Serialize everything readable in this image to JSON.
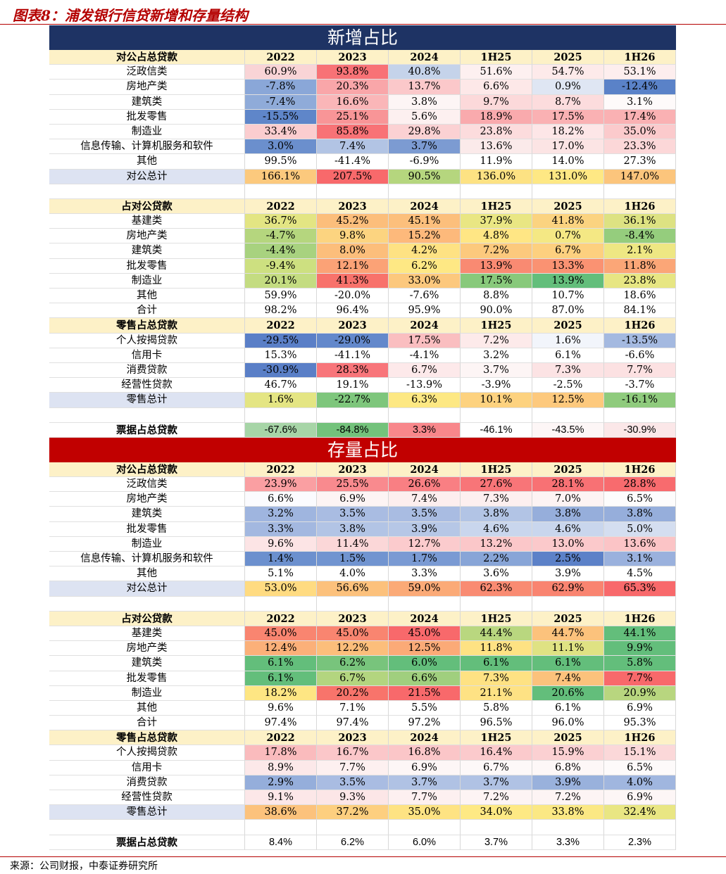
{
  "figure_title": "图表8：浦发银行信贷新增和存量结构",
  "source": "来源：公司财报，中泰证券研究所",
  "years": [
    "2022",
    "2023",
    "2024",
    "1H25",
    "2025",
    "1H26"
  ],
  "sections": [
    {
      "banner": "新增占比",
      "color": "navy",
      "rows": [
        {
          "type": "header",
          "label": "对公占总贷款"
        },
        {
          "type": "data",
          "label": "泛政信类",
          "values": [
            "60.9%",
            "93.8%",
            "40.8%",
            "51.6%",
            "54.7%",
            "53.1%"
          ],
          "colors": [
            "#f9d4d6",
            "#f87276",
            "#c5d3ea",
            "#fdf0f0",
            "#fdeaea",
            "#fdeeee"
          ]
        },
        {
          "type": "data",
          "label": "房地产类",
          "values": [
            "-7.8%",
            "20.3%",
            "13.7%",
            "6.6%",
            "0.9%",
            "-12.4%"
          ],
          "colors": [
            "#8aa7d8",
            "#f9a6a9",
            "#fbc8ca",
            "#fde8e8",
            "#dfe6f3",
            "#5a82c8"
          ]
        },
        {
          "type": "data",
          "label": "建筑类",
          "values": [
            "-7.4%",
            "16.6%",
            "3.8%",
            "9.7%",
            "8.7%",
            "3.1%"
          ],
          "colors": [
            "#8fabd9",
            "#fab6b8",
            "#fdf5f5",
            "#fcd9da",
            "#fcdcdd",
            "#fefafa"
          ]
        },
        {
          "type": "data",
          "label": "批发零售",
          "values": [
            "-15.5%",
            "25.1%",
            "5.6%",
            "18.9%",
            "17.5%",
            "17.4%"
          ],
          "colors": [
            "#5f86c9",
            "#f89597",
            "#fdf0f0",
            "#f9aaad",
            "#fab1b3",
            "#fab1b3"
          ]
        },
        {
          "type": "data",
          "label": "制造业",
          "values": [
            "33.4%",
            "85.8%",
            "29.8%",
            "23.8%",
            "18.2%",
            "35.0%"
          ],
          "colors": [
            "#fbcdcf",
            "#f87276",
            "#fbd1d3",
            "#fcdcdd",
            "#fde6e7",
            "#fbcacc"
          ]
        },
        {
          "type": "data",
          "label": "信息传输、计算机服务和软件",
          "values": [
            "3.0%",
            "7.4%",
            "3.7%",
            "13.6%",
            "17.0%",
            "23.3%"
          ],
          "colors": [
            "#6b8fcd",
            "#b2c4e4",
            "#7c9bd2",
            "#fbeaea",
            "#fce4e4",
            "#fcd7d8"
          ]
        },
        {
          "type": "data",
          "label": "其他",
          "values": [
            "99.5%",
            "-41.4%",
            "-6.9%",
            "11.9%",
            "14.0%",
            "27.3%"
          ],
          "colors": [
            "#ffffff",
            "#ffffff",
            "#ffffff",
            "#ffffff",
            "#ffffff",
            "#ffffff"
          ]
        },
        {
          "type": "total",
          "label": "对公总计",
          "values": [
            "166.1%",
            "207.5%",
            "90.5%",
            "136.0%",
            "131.0%",
            "147.0%"
          ],
          "colors": [
            "#fcc97d",
            "#f8696b",
            "#b5d67e",
            "#fde283",
            "#fee884",
            "#fcc57c"
          ]
        },
        {
          "type": "blank"
        },
        {
          "type": "header",
          "label": "占对公贷款"
        },
        {
          "type": "data",
          "label": "基建类",
          "values": [
            "36.7%",
            "45.2%",
            "45.1%",
            "37.9%",
            "41.8%",
            "36.1%"
          ],
          "colors": [
            "#e3e583",
            "#fcbe7b",
            "#fcbf7c",
            "#e9e683",
            "#fbd380",
            "#dde282"
          ]
        },
        {
          "type": "data",
          "label": "房地产类",
          "values": [
            "-4.7%",
            "9.8%",
            "15.2%",
            "4.8%",
            "0.7%",
            "-8.4%"
          ],
          "colors": [
            "#b5d67e",
            "#fcd480",
            "#fdb97b",
            "#ffe684",
            "#f4e884",
            "#95cd7d"
          ]
        },
        {
          "type": "data",
          "label": "建筑类",
          "values": [
            "-4.4%",
            "8.0%",
            "4.2%",
            "7.2%",
            "6.7%",
            "2.1%"
          ],
          "colors": [
            "#a8d27f",
            "#fcbe7b",
            "#fee283",
            "#fcc97d",
            "#fdd07f",
            "#eee783"
          ]
        },
        {
          "type": "data",
          "label": "批发零售",
          "values": [
            "-9.4%",
            "12.1%",
            "6.2%",
            "13.9%",
            "13.3%",
            "11.8%"
          ],
          "colors": [
            "#cde080",
            "#fba276",
            "#fee884",
            "#f98a72",
            "#fa9272",
            "#fba677"
          ]
        },
        {
          "type": "data",
          "label": "制造业",
          "values": [
            "20.1%",
            "41.3%",
            "33.0%",
            "17.5%",
            "13.9%",
            "23.8%"
          ],
          "colors": [
            "#c4dc81",
            "#f8726b",
            "#fcc87d",
            "#88c97b",
            "#63be7b",
            "#e7e683"
          ]
        },
        {
          "type": "data",
          "label": "其他",
          "values": [
            "59.9%",
            "-20.0%",
            "-7.6%",
            "8.8%",
            "10.7%",
            "18.6%"
          ],
          "colors": [
            "#ffffff",
            "#ffffff",
            "#ffffff",
            "#ffffff",
            "#ffffff",
            "#ffffff"
          ]
        },
        {
          "type": "data",
          "label": "合计",
          "values": [
            "98.2%",
            "96.4%",
            "95.9%",
            "90.0%",
            "87.0%",
            "84.1%"
          ],
          "colors": [
            "#ffffff",
            "#ffffff",
            "#ffffff",
            "#ffffff",
            "#ffffff",
            "#ffffff"
          ]
        },
        {
          "type": "header",
          "label": "零售占总贷款"
        },
        {
          "type": "data",
          "label": "个人按揭贷款",
          "values": [
            "-29.5%",
            "-29.0%",
            "17.5%",
            "7.2%",
            "1.6%",
            "-13.5%"
          ],
          "colors": [
            "#5a7fc7",
            "#6388cb",
            "#fabec0",
            "#fdeaea",
            "#f2f5fb",
            "#a4b9e0"
          ]
        },
        {
          "type": "data",
          "label": "信用卡",
          "values": [
            "15.3%",
            "-41.1%",
            "-4.1%",
            "3.2%",
            "6.1%",
            "-6.6%"
          ],
          "colors": [
            "#ffffff",
            "#ffffff",
            "#ffffff",
            "#ffffff",
            "#ffffff",
            "#ffffff"
          ]
        },
        {
          "type": "data",
          "label": "消费贷款",
          "values": [
            "-30.9%",
            "28.3%",
            "6.7%",
            "3.7%",
            "7.3%",
            "7.7%"
          ],
          "colors": [
            "#5a7fc7",
            "#f8757a",
            "#fde9ea",
            "#fdf5f5",
            "#fce3e4",
            "#fce1e2"
          ]
        },
        {
          "type": "data",
          "label": "经营性贷款",
          "values": [
            "46.7%",
            "19.1%",
            "-13.9%",
            "-3.9%",
            "-2.5%",
            "-3.7%"
          ],
          "colors": [
            "#ffffff",
            "#ffffff",
            "#ffffff",
            "#ffffff",
            "#ffffff",
            "#ffffff"
          ]
        },
        {
          "type": "total",
          "label": "零售总计",
          "values": [
            "1.6%",
            "-22.7%",
            "6.3%",
            "10.1%",
            "12.5%",
            "-16.1%"
          ],
          "colors": [
            "#e4e583",
            "#7ec67c",
            "#fde883",
            "#fdd27f",
            "#fdc97d",
            "#8fcb7d"
          ]
        },
        {
          "type": "blank"
        },
        {
          "type": "bill",
          "label": "票据占总贷款",
          "values": [
            "-67.6%",
            "-84.8%",
            "3.3%",
            "-46.1%",
            "-43.5%",
            "-30.9%"
          ],
          "colors": [
            "#a7d5a7",
            "#73c27b",
            "#f8878b",
            "#ffffff",
            "#fdf6f6",
            "#fbe7e8"
          ]
        }
      ]
    },
    {
      "banner": "存量占比",
      "color": "red",
      "rows": [
        {
          "type": "header",
          "label": "对公占总贷款"
        },
        {
          "type": "data",
          "label": "泛政信类",
          "values": [
            "23.9%",
            "25.5%",
            "26.6%",
            "27.6%",
            "28.1%",
            "28.8%"
          ],
          "colors": [
            "#fa9fa2",
            "#f98a8e",
            "#f97f83",
            "#f87578",
            "#f87174",
            "#f86b6e"
          ]
        },
        {
          "type": "data",
          "label": "房地产类",
          "values": [
            "6.6%",
            "6.9%",
            "7.4%",
            "7.3%",
            "7.0%",
            "6.5%"
          ],
          "colors": [
            "#fbfbfe",
            "#fdf4f4",
            "#fdeeee",
            "#fdefef",
            "#fdf3f3",
            "#fdfcfc"
          ]
        },
        {
          "type": "data",
          "label": "建筑类",
          "values": [
            "3.2%",
            "3.5%",
            "3.5%",
            "3.8%",
            "3.8%",
            "3.8%"
          ],
          "colors": [
            "#9fb5df",
            "#a9bce2",
            "#a9bce2",
            "#b2c4e5",
            "#96aedb",
            "#96aedb"
          ]
        },
        {
          "type": "data",
          "label": "批发零售",
          "values": [
            "3.3%",
            "3.8%",
            "3.9%",
            "4.6%",
            "4.6%",
            "5.0%"
          ],
          "colors": [
            "#a3b8e0",
            "#b2c4e5",
            "#b6c7e6",
            "#c9d6ed",
            "#c9d6ed",
            "#d4def0"
          ]
        },
        {
          "type": "data",
          "label": "制造业",
          "values": [
            "9.6%",
            "11.4%",
            "12.7%",
            "13.2%",
            "13.0%",
            "13.6%"
          ],
          "colors": [
            "#fce4e5",
            "#fbd7d8",
            "#fbcbcd",
            "#fbc7c9",
            "#fbc9cb",
            "#fbc4c6"
          ]
        },
        {
          "type": "data",
          "label": "信息传输、计算机服务和软件",
          "values": [
            "1.4%",
            "1.5%",
            "1.7%",
            "2.2%",
            "2.5%",
            "3.1%"
          ],
          "colors": [
            "#6c90ce",
            "#7194d0",
            "#7a9ad3",
            "#88a5d7",
            "#5c81c8",
            "#9ab1dd"
          ]
        },
        {
          "type": "data",
          "label": "其他",
          "values": [
            "5.1%",
            "4.0%",
            "3.3%",
            "3.6%",
            "3.9%",
            "4.5%"
          ],
          "colors": [
            "#ffffff",
            "#ffffff",
            "#ffffff",
            "#ffffff",
            "#ffffff",
            "#ffffff"
          ]
        },
        {
          "type": "total",
          "label": "对公总计",
          "values": [
            "53.0%",
            "56.6%",
            "59.0%",
            "62.3%",
            "62.9%",
            "65.3%"
          ],
          "colors": [
            "#ffdb81",
            "#fcc17c",
            "#fbaa77",
            "#f98b72",
            "#f98470",
            "#f8696b"
          ]
        },
        {
          "type": "blank"
        },
        {
          "type": "header",
          "label": "占对公贷款"
        },
        {
          "type": "data",
          "label": "基建类",
          "values": [
            "45.0%",
            "45.0%",
            "45.0%",
            "44.4%",
            "44.7%",
            "44.1%"
          ],
          "colors": [
            "#f98570",
            "#f98570",
            "#f8696b",
            "#b9d77f",
            "#fcc27c",
            "#63be7b"
          ]
        },
        {
          "type": "data",
          "label": "房地产类",
          "values": [
            "12.4%",
            "12.2%",
            "12.5%",
            "11.8%",
            "11.1%",
            "9.9%"
          ],
          "colors": [
            "#fbb079",
            "#fcbe7b",
            "#fbaa77",
            "#fee283",
            "#dfe283",
            "#63be7b"
          ]
        },
        {
          "type": "data",
          "label": "建筑类",
          "values": [
            "6.1%",
            "6.2%",
            "6.0%",
            "6.1%",
            "6.1%",
            "5.8%"
          ],
          "colors": [
            "#63be7b",
            "#78c47c",
            "#63be7b",
            "#63be7b",
            "#63be7b",
            "#63be7b"
          ]
        },
        {
          "type": "data",
          "label": "批发零售",
          "values": [
            "6.1%",
            "6.7%",
            "6.6%",
            "7.3%",
            "7.4%",
            "7.7%"
          ],
          "colors": [
            "#63be7b",
            "#b3d57f",
            "#a0cf7e",
            "#fee283",
            "#fcc27c",
            "#f8696b"
          ]
        },
        {
          "type": "data",
          "label": "制造业",
          "values": [
            "18.2%",
            "20.2%",
            "21.5%",
            "21.1%",
            "20.6%",
            "20.9%"
          ],
          "colors": [
            "#fee683",
            "#f8746b",
            "#f8696b",
            "#fee284",
            "#63be7b",
            "#b8d67f"
          ]
        },
        {
          "type": "data",
          "label": "其他",
          "values": [
            "9.6%",
            "7.1%",
            "5.5%",
            "5.8%",
            "6.1%",
            "6.9%"
          ],
          "colors": [
            "#ffffff",
            "#ffffff",
            "#ffffff",
            "#ffffff",
            "#ffffff",
            "#ffffff"
          ]
        },
        {
          "type": "data",
          "label": "合计",
          "values": [
            "97.4%",
            "97.4%",
            "97.2%",
            "96.5%",
            "96.0%",
            "95.3%"
          ],
          "colors": [
            "#ffffff",
            "#ffffff",
            "#ffffff",
            "#ffffff",
            "#ffffff",
            "#ffffff"
          ]
        },
        {
          "type": "header",
          "label": "零售占总贷款"
        },
        {
          "type": "data",
          "label": "个人按揭贷款",
          "values": [
            "17.8%",
            "16.7%",
            "16.8%",
            "16.4%",
            "15.9%",
            "15.1%"
          ],
          "colors": [
            "#fabbbd",
            "#fbc7c9",
            "#fbc6c8",
            "#fbcacc",
            "#fbd0d2",
            "#fbd8d9"
          ]
        },
        {
          "type": "data",
          "label": "信用卡",
          "values": [
            "8.9%",
            "7.7%",
            "6.9%",
            "6.7%",
            "6.8%",
            "6.5%"
          ],
          "colors": [
            "#fce8e9",
            "#fdf0f0",
            "#fdf6f6",
            "#fdf8f8",
            "#fdf7f7",
            "#fdfafa"
          ]
        },
        {
          "type": "data",
          "label": "消费贷款",
          "values": [
            "2.9%",
            "3.5%",
            "3.7%",
            "3.7%",
            "3.9%",
            "4.0%"
          ],
          "colors": [
            "#95aedb",
            "#a9bce2",
            "#b0c2e4",
            "#b0c2e4",
            "#99b1dc",
            "#a0b6df"
          ]
        },
        {
          "type": "data",
          "label": "经营性贷款",
          "values": [
            "9.1%",
            "9.3%",
            "7.7%",
            "7.2%",
            "7.2%",
            "6.9%"
          ],
          "colors": [
            "#fce7e8",
            "#fce6e7",
            "#fdf0f0",
            "#fdf4f4",
            "#fdf4f4",
            "#fdf6f6"
          ]
        },
        {
          "type": "total",
          "label": "零售总计",
          "values": [
            "38.6%",
            "37.2%",
            "35.0%",
            "34.0%",
            "33.8%",
            "32.4%"
          ],
          "colors": [
            "#fcc27c",
            "#fdcf7f",
            "#fee383",
            "#fee984",
            "#fbe884",
            "#e9e683"
          ]
        },
        {
          "type": "blank"
        },
        {
          "type": "bill",
          "label": "票据占总贷款",
          "values": [
            "8.4%",
            "6.2%",
            "6.0%",
            "3.7%",
            "3.3%",
            "2.3%"
          ],
          "colors": [
            "#ffffff",
            "#ffffff",
            "#ffffff",
            "#ffffff",
            "#ffffff",
            "#ffffff"
          ]
        }
      ]
    }
  ]
}
